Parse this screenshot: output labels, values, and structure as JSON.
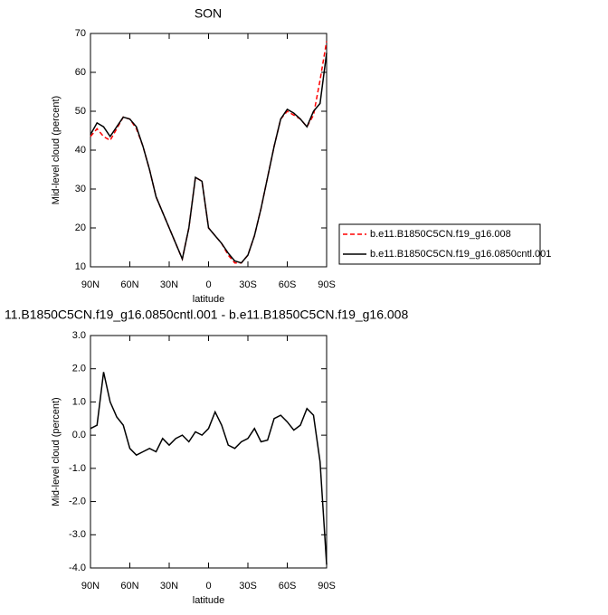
{
  "chart_data": [
    {
      "type": "line",
      "title": "SON",
      "xlabel": "latitude",
      "ylabel": "Mid-level cloud (percent)",
      "x": [
        90,
        85,
        80,
        75,
        70,
        65,
        60,
        55,
        50,
        45,
        40,
        35,
        30,
        25,
        20,
        15,
        10,
        5,
        0,
        -5,
        -10,
        -15,
        -20,
        -25,
        -30,
        -35,
        -40,
        -45,
        -50,
        -55,
        -60,
        -65,
        -70,
        -75,
        -80,
        -85,
        -90
      ],
      "series": [
        {
          "name": "b.e11.B1850C5CN.f19_g16.008",
          "color": "#ff0000",
          "line_style": "dashed",
          "values": [
            43.5,
            45.5,
            43.5,
            42.5,
            45.5,
            48.5,
            48,
            45.5,
            41,
            35,
            28,
            24,
            20,
            16,
            12,
            20,
            33,
            32,
            20,
            18,
            16,
            13,
            11,
            11,
            13,
            18,
            25,
            33,
            41,
            48,
            50,
            49,
            48,
            46,
            49,
            58,
            68
          ]
        },
        {
          "name": "b.e11.B1850C5CN.f19_g16.0850cntl.001",
          "color": "#000000",
          "line_style": "solid",
          "values": [
            44,
            47,
            46,
            43.5,
            46,
            48.5,
            48,
            46,
            41,
            35,
            28,
            24,
            20,
            16,
            12,
            20,
            33,
            32,
            20,
            18,
            16,
            13.5,
            11.5,
            11,
            13,
            18,
            25,
            33,
            41,
            48,
            50.5,
            49.5,
            48,
            46,
            50,
            52,
            65
          ]
        }
      ],
      "xlim": [
        90,
        -90
      ],
      "xticks": [
        {
          "value": 90,
          "label": "90N"
        },
        {
          "value": 60,
          "label": "60N"
        },
        {
          "value": 30,
          "label": "30N"
        },
        0,
        {
          "value": -30,
          "label": "30S"
        },
        {
          "value": -60,
          "label": "60S"
        },
        {
          "value": -90,
          "label": "90S"
        }
      ],
      "ylim": [
        10,
        70
      ],
      "yticks": [
        10,
        20,
        30,
        40,
        50,
        60,
        70
      ],
      "legend": "right"
    },
    {
      "type": "line",
      "title": "11.B1850C5CN.f19_g16.0850cntl.001 - b.e11.B1850C5CN.f19_g16.008",
      "xlabel": "latitude",
      "ylabel": "Mid-level cloud (percent)",
      "x": [
        90,
        85,
        80,
        75,
        70,
        65,
        60,
        55,
        50,
        45,
        40,
        35,
        30,
        25,
        20,
        15,
        10,
        5,
        0,
        -5,
        -10,
        -15,
        -20,
        -25,
        -30,
        -35,
        -40,
        -45,
        -50,
        -55,
        -60,
        -65,
        -70,
        -75,
        -80,
        -85,
        -90
      ],
      "series": [
        {
          "color": "#000000",
          "line_style": "solid",
          "values": [
            0.2,
            0.3,
            1.9,
            1.0,
            0.55,
            0.3,
            -0.4,
            -0.6,
            -0.5,
            -0.4,
            -0.5,
            -0.1,
            -0.3,
            -0.1,
            0.0,
            -0.2,
            0.1,
            0.0,
            0.2,
            0.7,
            0.3,
            -0.3,
            -0.4,
            -0.2,
            -0.1,
            0.2,
            -0.2,
            -0.15,
            0.5,
            0.6,
            0.4,
            0.15,
            0.3,
            0.8,
            0.6,
            -0.8,
            -3.9
          ]
        }
      ],
      "xlim": [
        90,
        -90
      ],
      "xticks": [
        {
          "value": 90,
          "label": "90N"
        },
        {
          "value": 60,
          "label": "60N"
        },
        {
          "value": 30,
          "label": "30N"
        },
        0,
        {
          "value": -30,
          "label": "30S"
        },
        {
          "value": -60,
          "label": "60S"
        },
        {
          "value": -90,
          "label": "90S"
        }
      ],
      "ylim": [
        -4,
        3
      ],
      "yticks": [
        {
          "value": 3,
          "label": "3.0"
        },
        {
          "value": 2,
          "label": "2.0"
        },
        {
          "value": 1,
          "label": "1.0"
        },
        {
          "value": 0,
          "label": "0.0"
        },
        {
          "value": -1,
          "label": "-1.0"
        },
        {
          "value": -2,
          "label": "-2.0"
        },
        {
          "value": -3,
          "label": "-3.0"
        },
        {
          "value": -4,
          "label": "-4.0"
        }
      ]
    }
  ]
}
